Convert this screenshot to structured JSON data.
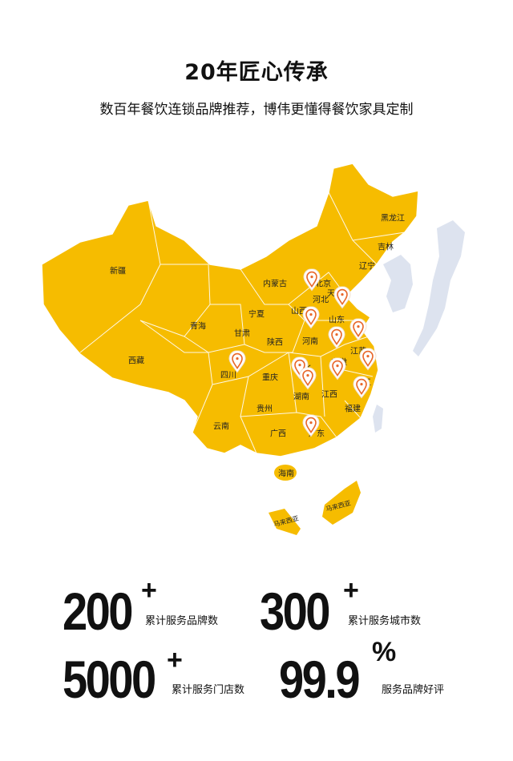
{
  "header": {
    "title": "20年匠心传承",
    "subtitle": "数百年餐饮连锁品牌推荐，博伟更懂得餐饮家具定制"
  },
  "map": {
    "colors": {
      "china": "#F6BC00",
      "border": "#ffffff",
      "neighbor": "#DDE3EF",
      "pin": "#E8672A"
    },
    "provinces": [
      "新疆",
      "西藏",
      "青海",
      "甘肃",
      "宁夏",
      "内蒙古",
      "陕西",
      "四川",
      "重庆",
      "云南",
      "贵州",
      "广西",
      "海南",
      "湖南",
      "湖北",
      "河南",
      "山西",
      "河北",
      "北京",
      "天津",
      "山东",
      "江苏",
      "安徽",
      "浙江",
      "江西",
      "福建",
      "广东",
      "辽宁",
      "吉林",
      "黑龙江",
      "马来西亚",
      "马来西亚"
    ],
    "pin_icon": "location-pin-icon"
  },
  "stats": [
    {
      "value": "200",
      "suffix": "+",
      "label": "累计服务品牌数"
    },
    {
      "value": "300",
      "suffix": "+",
      "label": "累计服务城市数"
    },
    {
      "value": "5000",
      "suffix": "+",
      "label": "累计服务门店数"
    },
    {
      "value": "99.9",
      "suffix": "%",
      "label": "服务品牌好评"
    }
  ]
}
